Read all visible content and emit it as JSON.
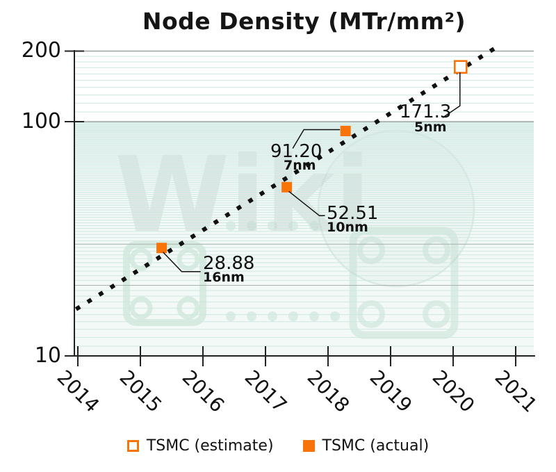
{
  "title": "Node Density (MTr/mm²)",
  "watermark": {
    "text": "Wiki"
  },
  "legend": {
    "marker_color": "#F87408",
    "items": [
      {
        "label": "TSMC (estimate)",
        "marker": "open-square"
      },
      {
        "label": "TSMC (actual)",
        "marker": "filled-square"
      }
    ]
  },
  "chart_data": {
    "type": "scatter",
    "title": "Node Density (MTr/mm²)",
    "x_axis": {
      "tick_labels": [
        "2014",
        "2015",
        "2016",
        "2017",
        "2018",
        "2019",
        "2020",
        "2021"
      ],
      "range": [
        2013.95,
        2021.3
      ],
      "grid": false
    },
    "y_axis": {
      "scale": "log",
      "tick_labels": [
        "200",
        "100",
        "10"
      ],
      "tick_values": [
        200,
        100,
        10
      ],
      "range": [
        10,
        218
      ],
      "grid": "horizontal, minor gridlines at every integer 11-99 and every 10 from 110-190"
    },
    "series": [
      {
        "name": "TSMC (actual)",
        "marker": "filled-square",
        "color": "#F87408",
        "points": [
          {
            "year": 2015.34,
            "value": 28.88,
            "label": "28.88",
            "node": "16nm"
          },
          {
            "year": 2017.34,
            "value": 52.51,
            "label": "52.51",
            "node": "10nm"
          },
          {
            "year": 2018.28,
            "value": 91.2,
            "label": "91.20",
            "node": "7nm"
          }
        ]
      },
      {
        "name": "TSMC (estimate)",
        "marker": "open-square",
        "color": "#F87408",
        "points": [
          {
            "year": 2020.12,
            "value": 171.3,
            "label": "171.3",
            "node": "5nm"
          }
        ]
      }
    ],
    "trendline": {
      "style": "dotted",
      "color": "#111111",
      "from": {
        "year": 2014.0,
        "value": 16.0
      },
      "to": {
        "year": 2020.72,
        "value": 210.0
      }
    }
  },
  "colors": {
    "accent": "#F87408",
    "grid_minor": "#cfe7e2",
    "grid_soft_gray": "#a8b2b0",
    "grid_major": "#99a4a1",
    "axis": "#222222",
    "band_tint": "rgba(213,234,230,0.30)"
  }
}
